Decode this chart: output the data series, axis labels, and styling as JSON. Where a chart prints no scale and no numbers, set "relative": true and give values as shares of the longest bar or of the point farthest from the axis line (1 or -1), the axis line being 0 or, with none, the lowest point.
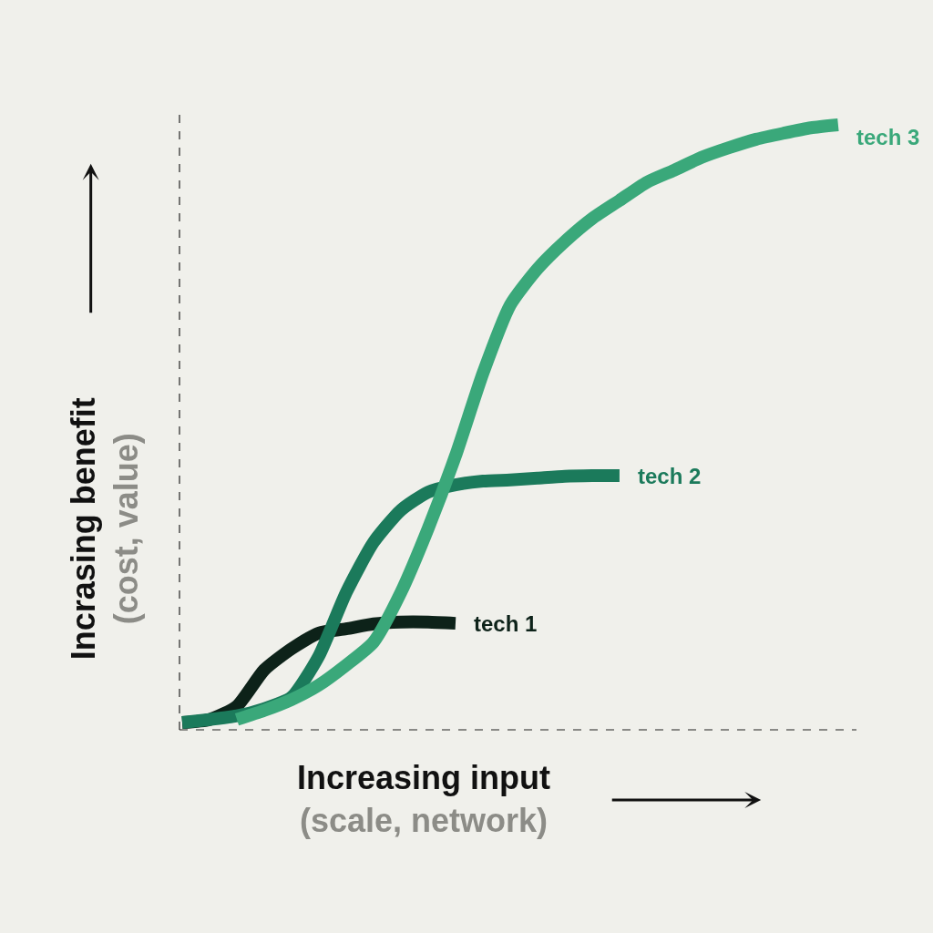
{
  "chart_data": {
    "type": "line",
    "relative": true,
    "xlabel": "Increasing input\n(scale, network)",
    "ylabel": "Incrasing benefit\n(cost, value)",
    "legend": false,
    "marker": "none",
    "line_style": "solid",
    "categories": [
      null,
      null,
      null,
      null,
      null,
      null,
      null,
      null,
      null,
      null,
      null,
      null,
      null,
      null,
      null,
      null,
      null,
      null,
      null,
      null,
      null,
      null,
      null,
      null,
      null
    ],
    "series": [
      {
        "name": "tech 1",
        "color": "#0d2219",
        "values": [
          0.012,
          0.017,
          0.039,
          0.099,
          0.134,
          0.16,
          0.167,
          0.175,
          0.178,
          0.178,
          0.176,
          null,
          null,
          null,
          null,
          null,
          null,
          null,
          null,
          null,
          null,
          null,
          null,
          null,
          null
        ]
      },
      {
        "name": "tech 2",
        "color": "#1b7a5b",
        "values": [
          0.012,
          0.017,
          0.023,
          0.035,
          0.054,
          0.122,
          0.227,
          0.31,
          0.363,
          0.393,
          0.405,
          0.411,
          0.413,
          0.416,
          0.419,
          0.42,
          0.42,
          null,
          null,
          null,
          null,
          null,
          null,
          null,
          null
        ]
      },
      {
        "name": "tech 3",
        "color": "#3aa87a",
        "values": [
          null,
          null,
          0.017,
          0.032,
          0.05,
          0.074,
          0.107,
          0.145,
          0.227,
          0.333,
          0.453,
          0.589,
          0.702,
          0.762,
          0.807,
          0.845,
          0.875,
          0.905,
          0.925,
          0.946,
          0.962,
          0.976,
          0.986,
          0.995,
          1.0
        ]
      }
    ]
  }
}
